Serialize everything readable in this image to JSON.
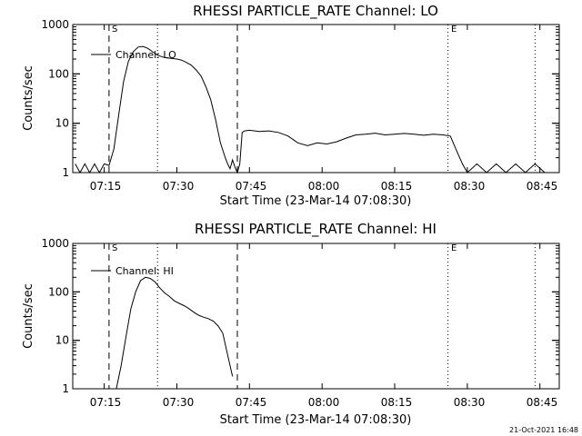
{
  "chart_data": [
    {
      "type": "line",
      "title": "RHESSI PARTICLE_RATE Channel: LO",
      "xlabel": "Start Time (23-Mar-14 07:08:30)",
      "ylabel": "Counts/sec",
      "yscale": "log",
      "ylim": [
        1,
        1000
      ],
      "xlim": [
        "07:08:30",
        "08:49:00"
      ],
      "xticks": [
        "07:15",
        "07:30",
        "07:45",
        "08:00",
        "08:15",
        "08:30",
        "08:45"
      ],
      "yticks": [
        "1",
        "10",
        "100",
        "1000"
      ],
      "legend": "top-left",
      "markers": {
        "dashed": [
          "07:16:00",
          "07:42:30"
        ],
        "dotted": [
          "07:26:00",
          "08:26:00",
          "08:44:00"
        ],
        "labels": [
          {
            "text": "S",
            "at": "07:16:00"
          },
          {
            "text": "E",
            "at": "08:26:00"
          }
        ]
      },
      "series": [
        {
          "name": "Channel: LO",
          "x": [
            "07:09:00",
            "07:10:00",
            "07:11:00",
            "07:12:00",
            "07:13:00",
            "07:14:00",
            "07:15:00",
            "07:16:00",
            "07:17:00",
            "07:18:00",
            "07:19:00",
            "07:20:00",
            "07:21:00",
            "07:22:00",
            "07:23:00",
            "07:24:00",
            "07:25:00",
            "07:26:00",
            "07:27:00",
            "07:28:00",
            "07:30:00",
            "07:31:00",
            "07:32:00",
            "07:33:00",
            "07:34:00",
            "07:35:00",
            "07:36:00",
            "07:37:00",
            "07:38:00",
            "07:39:00",
            "07:40:00",
            "07:40:30",
            "07:41:00",
            "07:41:30",
            "07:42:00",
            "07:42:30",
            "07:43:00",
            "07:43:30",
            "07:44:00",
            "07:45:00",
            "07:47:00",
            "07:49:00",
            "07:51:00",
            "07:53:00",
            "07:55:00",
            "07:57:00",
            "07:59:00",
            "08:01:00",
            "08:03:00",
            "08:05:00",
            "08:07:00",
            "08:09:00",
            "08:11:00",
            "08:13:00",
            "08:15:00",
            "08:17:00",
            "08:19:00",
            "08:21:00",
            "08:23:00",
            "08:25:00",
            "08:26:30",
            "08:28:00",
            "08:29:00",
            "08:30:00",
            "08:32:00",
            "08:34:00",
            "08:36:00",
            "08:38:00",
            "08:40:00",
            "08:42:00",
            "08:44:00",
            "08:46:00",
            "08:48:00"
          ],
          "y": [
            1.5,
            1,
            1.5,
            1,
            1.5,
            1,
            1.5,
            1.4,
            3,
            15,
            70,
            180,
            280,
            350,
            360,
            330,
            280,
            240,
            220,
            210,
            200,
            190,
            170,
            150,
            120,
            90,
            55,
            30,
            12,
            4,
            2,
            1.5,
            1.2,
            1.8,
            1.3,
            1,
            1.5,
            6.5,
            7,
            7.2,
            6.8,
            7,
            6.5,
            5.5,
            4,
            3.5,
            4,
            3.8,
            4.2,
            5,
            5.8,
            6,
            6.3,
            5.8,
            6,
            6.2,
            6,
            5.7,
            6,
            5.8,
            5.5,
            2.5,
            1.5,
            1,
            1.5,
            1,
            1.5,
            1,
            1.5,
            1,
            1.5,
            1,
            1
          ]
        }
      ]
    },
    {
      "type": "line",
      "title": "RHESSI PARTICLE_RATE Channel: HI",
      "xlabel": "Start Time (23-Mar-14 07:08:30)",
      "ylabel": "Counts/sec",
      "yscale": "log",
      "ylim": [
        1,
        1000
      ],
      "xlim": [
        "07:08:30",
        "08:49:00"
      ],
      "xticks": [
        "07:15",
        "07:30",
        "07:45",
        "08:00",
        "08:15",
        "08:30",
        "08:45"
      ],
      "yticks": [
        "1",
        "10",
        "100",
        "1000"
      ],
      "legend": "top-left",
      "markers": {
        "dashed": [
          "07:16:00",
          "07:42:30"
        ],
        "dotted": [
          "07:26:00",
          "08:26:00",
          "08:44:00"
        ],
        "labels": [
          {
            "text": "S",
            "at": "07:16:00"
          },
          {
            "text": "E",
            "at": "08:26:00"
          }
        ]
      },
      "series": [
        {
          "name": "Channel: HI",
          "x": [
            "07:17:30",
            "07:18:30",
            "07:19:30",
            "07:20:30",
            "07:21:30",
            "07:22:30",
            "07:23:30",
            "07:24:30",
            "07:25:30",
            "07:26:30",
            "07:27:30",
            "07:28:30",
            "07:29:30",
            "07:30:30",
            "07:31:30",
            "07:32:30",
            "07:33:30",
            "07:34:30",
            "07:35:30",
            "07:36:30",
            "07:37:30",
            "07:38:30",
            "07:39:30",
            "07:40:30",
            "07:41:30"
          ],
          "y": [
            1,
            3,
            12,
            45,
            100,
            170,
            200,
            190,
            160,
            120,
            95,
            80,
            65,
            58,
            52,
            45,
            38,
            33,
            30,
            28,
            25,
            20,
            14,
            5,
            1.8
          ]
        }
      ]
    }
  ],
  "footer": {
    "timestamp": "21-Oct-2021 16:48"
  }
}
